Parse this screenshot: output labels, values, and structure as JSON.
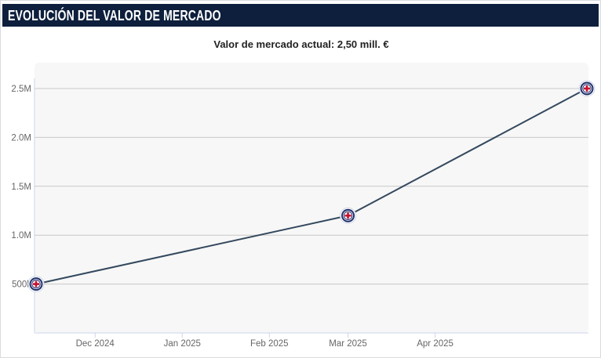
{
  "header": {
    "title": "EVOLUCIÓN DEL VALOR DE MERCADO"
  },
  "subtitle": "Valor de mercado actual: 2,50 mill. €",
  "chart_data": {
    "type": "line",
    "title": "",
    "xlabel": "",
    "ylabel": "",
    "x_tick_labels": [
      "Dec 2024",
      "Jan 2025",
      "Feb 2025",
      "Mar 2025",
      "Apr 2025"
    ],
    "y_tick_labels": [
      "500k",
      "1.0M",
      "1.5M",
      "2.0M",
      "2.5M"
    ],
    "ylim": [
      0,
      2.7
    ],
    "xlim": [
      "2024-11-10",
      "2025-05-25"
    ],
    "grid": true,
    "series": [
      {
        "color": "#34495e",
        "marker": "club-crest",
        "points": [
          {
            "x": "2024-11-10",
            "y": 0.5
          },
          {
            "x": "2025-03-01",
            "y": 1.2
          },
          {
            "x": "2025-05-25",
            "y": 2.5
          }
        ]
      }
    ]
  },
  "colors": {
    "header_bg": "#0d1f3c",
    "plot_bg": "#f7f7f7",
    "grid": "#c8c8c8",
    "axis": "#ccd6eb",
    "tick_text": "#666666",
    "line": "#34495e",
    "marker_ring": "#1f2f6b",
    "marker_cross": "#c8102e"
  }
}
